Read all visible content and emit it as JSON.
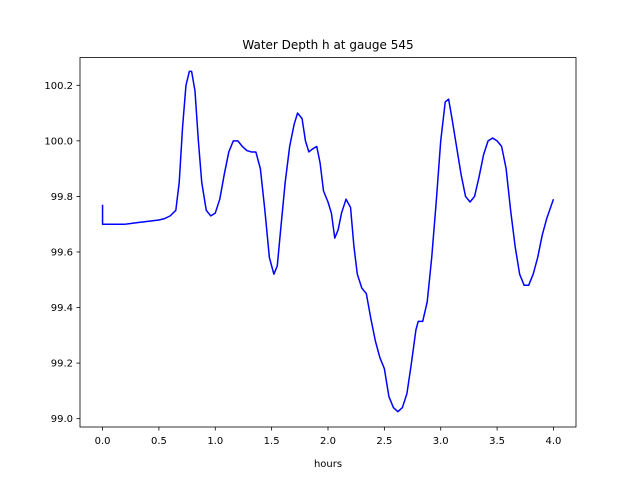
{
  "chart_data": {
    "type": "line",
    "title": "Water Depth h at gauge 545",
    "xlabel": "hours",
    "ylabel": "",
    "xlim": [
      -0.2,
      4.2
    ],
    "ylim": [
      98.97,
      100.3
    ],
    "xticks": [
      0.0,
      0.5,
      1.0,
      1.5,
      2.0,
      2.5,
      3.0,
      3.5,
      4.0
    ],
    "xtick_labels": [
      "0.0",
      "0.5",
      "1.0",
      "1.5",
      "2.0",
      "2.5",
      "3.0",
      "3.5",
      "4.0"
    ],
    "yticks": [
      99.0,
      99.2,
      99.4,
      99.6,
      99.8,
      100.0,
      100.2
    ],
    "ytick_labels": [
      "99.0",
      "99.2",
      "99.4",
      "99.6",
      "99.8",
      "100.0",
      "100.2"
    ],
    "grid": false,
    "color": "#0000ff",
    "series": [
      {
        "x": [
          0.0,
          0.0,
          0.1,
          0.2,
          0.3,
          0.4,
          0.5,
          0.55,
          0.6,
          0.65,
          0.68,
          0.71,
          0.74,
          0.77,
          0.79,
          0.82,
          0.85,
          0.88,
          0.92,
          0.96,
          1.0,
          1.04,
          1.08,
          1.12,
          1.16,
          1.2,
          1.24,
          1.28,
          1.32,
          1.36,
          1.4,
          1.44,
          1.48,
          1.52,
          1.55,
          1.58,
          1.62,
          1.66,
          1.7,
          1.73,
          1.77,
          1.8,
          1.83,
          1.86,
          1.9,
          1.93,
          1.96,
          2.0,
          2.03,
          2.06,
          2.09,
          2.12,
          2.16,
          2.2,
          2.23,
          2.26,
          2.3,
          2.34,
          2.38,
          2.42,
          2.46,
          2.5,
          2.54,
          2.58,
          2.62,
          2.66,
          2.7,
          2.74,
          2.78,
          2.8,
          2.84,
          2.88,
          2.92,
          2.96,
          3.0,
          3.04,
          3.07,
          3.1,
          3.14,
          3.18,
          3.22,
          3.26,
          3.3,
          3.34,
          3.38,
          3.42,
          3.46,
          3.5,
          3.54,
          3.58,
          3.62,
          3.66,
          3.7,
          3.74,
          3.78,
          3.82,
          3.86,
          3.9,
          3.94,
          4.0
        ],
        "y": [
          99.77,
          99.7,
          99.7,
          99.7,
          99.705,
          99.71,
          99.715,
          99.72,
          99.73,
          99.75,
          99.85,
          100.05,
          100.2,
          100.25,
          100.25,
          100.18,
          100.0,
          99.85,
          99.75,
          99.73,
          99.74,
          99.79,
          99.88,
          99.96,
          100.0,
          100.0,
          99.98,
          99.965,
          99.96,
          99.96,
          99.9,
          99.75,
          99.58,
          99.52,
          99.55,
          99.68,
          99.85,
          99.98,
          100.06,
          100.1,
          100.08,
          100.0,
          99.96,
          99.97,
          99.98,
          99.92,
          99.82,
          99.78,
          99.74,
          99.65,
          99.68,
          99.74,
          99.79,
          99.76,
          99.62,
          99.52,
          99.47,
          99.45,
          99.36,
          99.28,
          99.22,
          99.18,
          99.08,
          99.04,
          99.025,
          99.04,
          99.09,
          99.2,
          99.32,
          99.35,
          99.35,
          99.42,
          99.58,
          99.78,
          100.0,
          100.14,
          100.15,
          100.08,
          99.98,
          99.88,
          99.8,
          99.78,
          99.8,
          99.87,
          99.95,
          100.0,
          100.01,
          100.0,
          99.98,
          99.9,
          99.75,
          99.62,
          99.52,
          99.48,
          99.48,
          99.52,
          99.58,
          99.66,
          99.72,
          99.79
        ]
      }
    ]
  }
}
